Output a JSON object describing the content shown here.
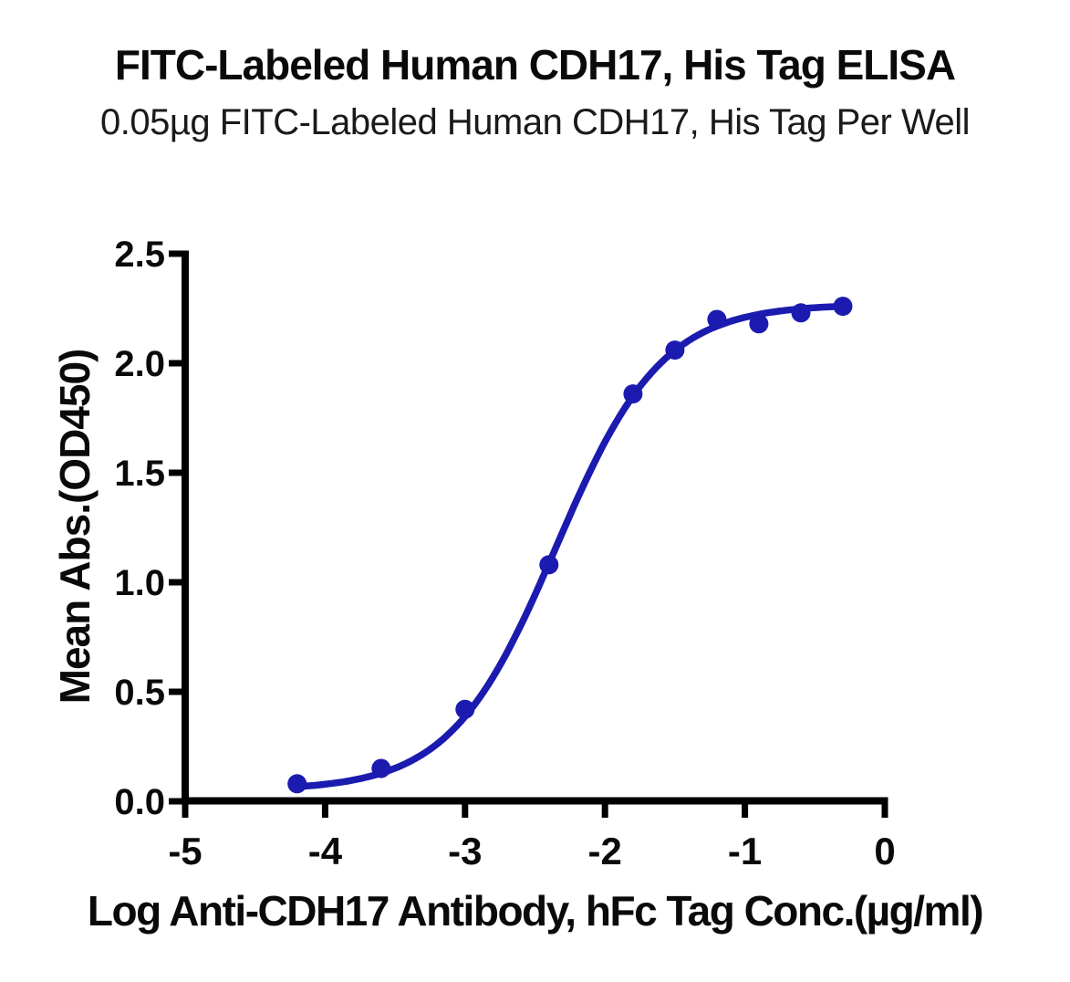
{
  "chart_data": {
    "type": "scatter",
    "subtype": "sigmoidal-dose-response-with-fit",
    "title": "FITC-Labeled Human CDH17, His Tag ELISA",
    "subtitle": "0.05µg FITC-Labeled Human CDH17, His Tag Per Well",
    "xlabel": "Log Anti-CDH17 Antibody, hFc Tag Conc.(µg/ml)",
    "ylabel": "Mean Abs.(OD450)",
    "x": [
      -4.2,
      -3.6,
      -3.0,
      -2.4,
      -1.8,
      -1.5,
      -1.2,
      -0.9,
      -0.6,
      -0.3
    ],
    "y": [
      0.08,
      0.15,
      0.42,
      1.08,
      1.86,
      2.06,
      2.2,
      2.18,
      2.23,
      2.26
    ],
    "xlim": [
      -5,
      0
    ],
    "ylim": [
      0.0,
      2.5
    ],
    "x_ticks": [
      -5,
      -4,
      -3,
      -2,
      -1,
      0
    ],
    "x_tick_labels": [
      "-5",
      "-4",
      "-3",
      "-2",
      "-1",
      "0"
    ],
    "y_ticks": [
      0.0,
      0.5,
      1.0,
      1.5,
      2.0,
      2.5
    ],
    "y_tick_labels": [
      "0.0",
      "0.5",
      "1.0",
      "1.5",
      "2.0",
      "2.5"
    ],
    "grid": false,
    "legend": "none",
    "curve_fit": {
      "model": "4PL",
      "bottom": 0.05,
      "top": 2.27,
      "log_ec50": -2.35,
      "hill": 1.15
    },
    "colors": {
      "line": "#1b1bb0",
      "marker": "#1b1bb0",
      "axis": "#000000",
      "text": "#0a0a0a",
      "background": "#ffffff"
    }
  }
}
